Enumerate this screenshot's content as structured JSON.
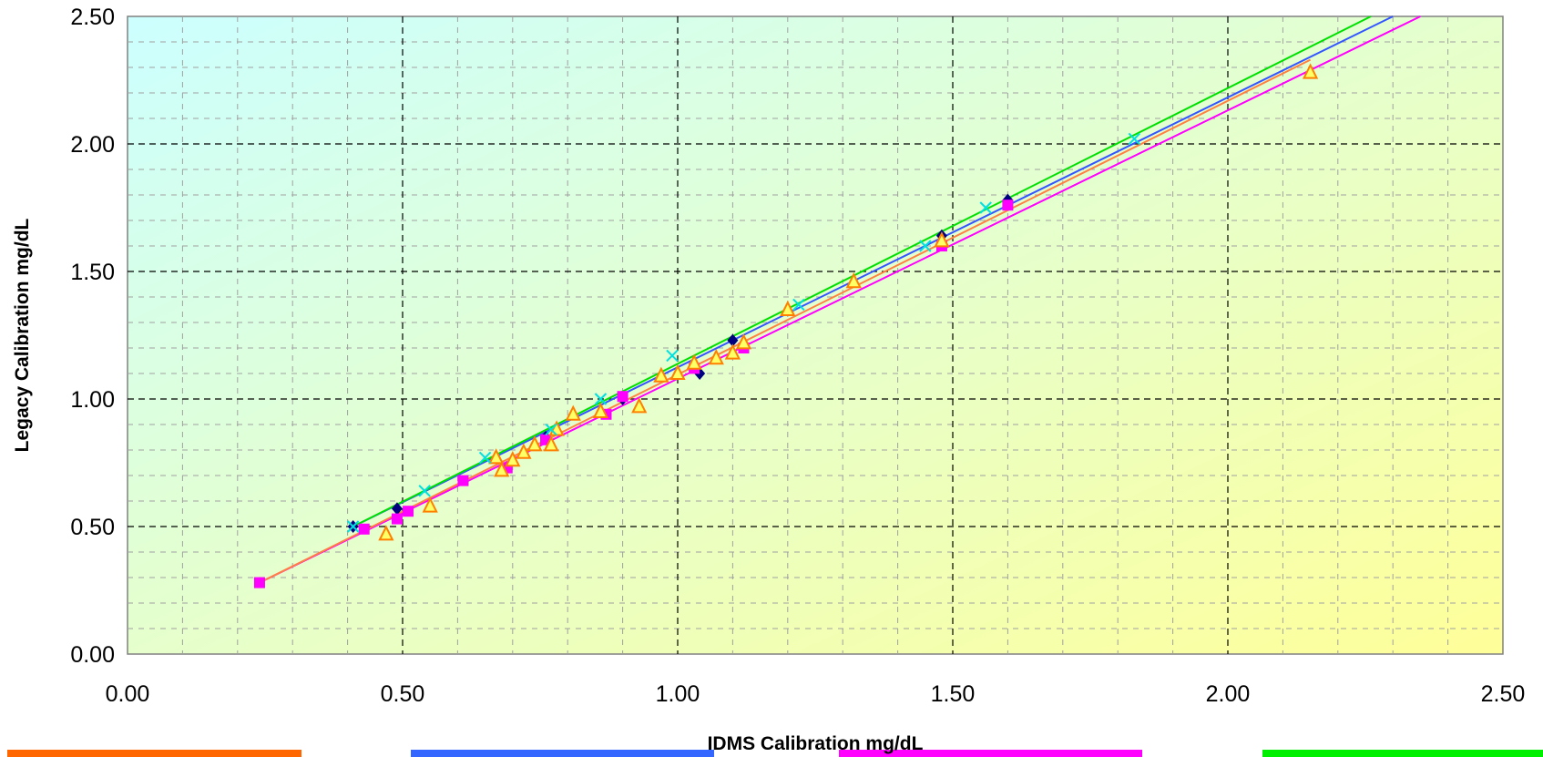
{
  "chart_data": {
    "type": "scatter",
    "xlabel": "IDMS Calibration mg/dL",
    "ylabel": "Legacy Calibration mg/dL",
    "xlim": [
      0,
      2.5
    ],
    "ylim": [
      0,
      2.5
    ],
    "x_ticks": [
      "0.00",
      "0.50",
      "1.00",
      "1.50",
      "2.00",
      "2.50"
    ],
    "y_ticks": [
      "0.00",
      "0.50",
      "1.00",
      "1.50",
      "2.00",
      "2.50"
    ],
    "grid": true,
    "background": "gradient cyan (top-left) to yellow (bottom-right)",
    "legend": "bottom (partially visible colored boxes)",
    "series": [
      {
        "marker": "diamond",
        "color": "#000080",
        "points": [
          [
            0.41,
            0.5
          ],
          [
            0.49,
            0.57
          ],
          [
            0.76,
            0.85
          ],
          [
            0.9,
            1.0
          ],
          [
            1.04,
            1.1
          ],
          [
            1.1,
            1.23
          ],
          [
            1.48,
            1.64
          ],
          [
            1.6,
            1.78
          ]
        ],
        "fit": {
          "x": [
            0.41,
            2.3
          ],
          "y": [
            0.5,
            2.5
          ],
          "color": "#3355ff"
        }
      },
      {
        "marker": "square",
        "color": "#ff00ff",
        "points": [
          [
            0.24,
            0.28
          ],
          [
            0.43,
            0.49
          ],
          [
            0.49,
            0.53
          ],
          [
            0.51,
            0.56
          ],
          [
            0.61,
            0.68
          ],
          [
            0.69,
            0.73
          ],
          [
            0.76,
            0.84
          ],
          [
            0.87,
            0.94
          ],
          [
            0.9,
            1.01
          ],
          [
            1.03,
            1.12
          ],
          [
            1.12,
            1.2
          ],
          [
            1.48,
            1.6
          ],
          [
            1.6,
            1.76
          ]
        ],
        "fit": {
          "x": [
            0.24,
            2.35
          ],
          "y": [
            0.28,
            2.5
          ],
          "color": "#ff00ff"
        }
      },
      {
        "marker": "triangle",
        "color": "#ff8000",
        "points": [
          [
            0.47,
            0.47
          ],
          [
            0.55,
            0.58
          ],
          [
            0.67,
            0.77
          ],
          [
            0.68,
            0.72
          ],
          [
            0.7,
            0.76
          ],
          [
            0.72,
            0.79
          ],
          [
            0.74,
            0.82
          ],
          [
            0.77,
            0.82
          ],
          [
            0.78,
            0.88
          ],
          [
            0.81,
            0.94
          ],
          [
            0.86,
            0.95
          ],
          [
            0.93,
            0.97
          ],
          [
            0.97,
            1.09
          ],
          [
            1.0,
            1.1
          ],
          [
            1.03,
            1.14
          ],
          [
            1.07,
            1.16
          ],
          [
            1.1,
            1.18
          ],
          [
            1.12,
            1.22
          ],
          [
            1.2,
            1.35
          ],
          [
            1.32,
            1.46
          ],
          [
            1.48,
            1.62
          ],
          [
            2.15,
            2.28
          ]
        ],
        "fit": {
          "x": [
            0.24,
            2.15
          ],
          "y": [
            0.28,
            2.33
          ],
          "color": "#ff8040"
        }
      },
      {
        "marker": "x",
        "color": "#00e0e0",
        "points": [
          [
            0.41,
            0.5
          ],
          [
            0.54,
            0.64
          ],
          [
            0.65,
            0.77
          ],
          [
            0.77,
            0.88
          ],
          [
            0.86,
            1.0
          ],
          [
            0.99,
            1.17
          ],
          [
            1.22,
            1.37
          ],
          [
            1.45,
            1.6
          ],
          [
            1.56,
            1.75
          ],
          [
            1.83,
            2.02
          ]
        ],
        "fit": {
          "x": [
            0.41,
            2.26
          ],
          "y": [
            0.5,
            2.5
          ],
          "color": "#00e000"
        }
      }
    ],
    "legend_boxes": [
      {
        "color": "#ff6600"
      },
      {
        "color": "#3366ff"
      },
      {
        "color": "#ff00ff"
      },
      {
        "color": "#00ee00"
      }
    ]
  }
}
